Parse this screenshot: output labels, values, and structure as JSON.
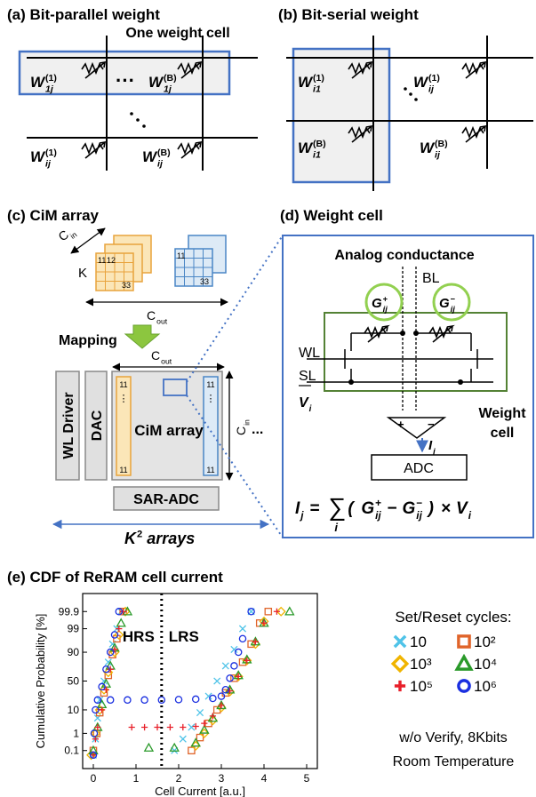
{
  "panel_a": {
    "title": "(a) Bit-parallel weight",
    "cell_label": "One weight cell",
    "ellipsis": "···",
    "weights": [
      {
        "base": "W",
        "sup": "(1)",
        "sub": "1j"
      },
      {
        "base": "W",
        "sup": "(B)",
        "sub": "1j"
      },
      {
        "base": "W",
        "sup": "(1)",
        "sub": "ij"
      },
      {
        "base": "W",
        "sup": "(B)",
        "sub": "ij"
      }
    ]
  },
  "panel_b": {
    "title": "(b) Bit-serial weight",
    "weights": [
      {
        "base": "W",
        "sup": "(1)",
        "sub": "i1"
      },
      {
        "base": "W",
        "sup": "(1)",
        "sub": "ij"
      },
      {
        "base": "W",
        "sup": "(B)",
        "sub": "i1"
      },
      {
        "base": "W",
        "sup": "(B)",
        "sub": "ij"
      }
    ]
  },
  "panel_c": {
    "title": "(c) CiM array",
    "c_in": {
      "base": "C",
      "sub": "in"
    },
    "k": "K",
    "cube_indices": [
      "11",
      "12",
      "33"
    ],
    "blue_indices": [
      "11",
      "33"
    ],
    "c_out": {
      "base": "C",
      "sub": "out"
    },
    "mapping": "Mapping",
    "c_out_array": {
      "base": "C",
      "sub": "out"
    },
    "wl_driver": "WL Driver",
    "dac": "DAC",
    "array": "CiM array",
    "orange_col": [
      "11",
      "⋮",
      "11"
    ],
    "blue_col": [
      "11",
      "⋮",
      "11"
    ],
    "c_in_array": {
      "base": "C",
      "sub": "in"
    },
    "more": "...",
    "sar_adc": "SAR-ADC",
    "arrays": {
      "base": "K",
      "sup": "2",
      "tail": " arrays"
    }
  },
  "panel_d": {
    "title": "(d) Weight cell",
    "analog": "Analog conductance",
    "bl": "BL",
    "wl": "WL",
    "sl": "SL",
    "v": {
      "base": "V",
      "sub": "i"
    },
    "g_plus": {
      "base": "G",
      "sup": "+",
      "sub": "ij"
    },
    "g_minus": {
      "base": "G",
      "sup": "−",
      "sub": "ij"
    },
    "plus": "+",
    "minus": "−",
    "current": {
      "base": "I",
      "sub": "j"
    },
    "adc": "ADC",
    "weight_cell": [
      "Weight",
      "cell"
    ],
    "formula": [
      {
        "base": "I",
        "sub": "j"
      },
      {
        "base": "="
      },
      {
        "base": "∑",
        "sub": "i"
      },
      {
        "base": "("
      },
      {
        "base": "G",
        "sup": "+",
        "sub": "ij"
      },
      {
        "base": "−"
      },
      {
        "base": "G",
        "sup": "−",
        "sub": "ij"
      },
      {
        "base": ")"
      },
      {
        "base": "×"
      },
      {
        "base": "V",
        "sub": "i"
      }
    ]
  },
  "chart_data": {
    "type": "scatter",
    "title": "(e) CDF of ReRAM cell current",
    "x_label": "Cell Current [a.u.]",
    "y_label": "Cumulative Probability [%]",
    "y_scale": "probit",
    "xlim": [
      -0.25,
      5.25
    ],
    "xticks": [
      0,
      1,
      2,
      3,
      4,
      5
    ],
    "ylim": [
      0.005,
      99.995
    ],
    "yticks": [
      0.1,
      1,
      10,
      50,
      90,
      99,
      99.9
    ],
    "divider_x": 1.6,
    "annotations": [
      "HRS",
      "LRS"
    ],
    "legend_title": "Set/Reset cycles:",
    "notes": [
      "w/o Verify, 8Kbits",
      "Room Temperature"
    ],
    "series": [
      {
        "name": "10",
        "color": "#4fc3e8",
        "marker": "x",
        "x": [
          0,
          0.05,
          0.1,
          0.15,
          0.25,
          0.35,
          0.45,
          0.55,
          0.65,
          1.9,
          2.1,
          2.3,
          2.5,
          2.7,
          2.9,
          3.1,
          3.3,
          3.5,
          3.7
        ],
        "values": [
          0.05,
          0.5,
          5,
          20,
          50,
          80,
          95,
          99,
          99.9,
          0.1,
          0.5,
          2,
          8,
          25,
          50,
          75,
          92,
          99,
          99.9
        ]
      },
      {
        "name": "10²",
        "color": "#e0642a",
        "marker": "square",
        "x": [
          0,
          0.08,
          0.15,
          0.25,
          0.35,
          0.45,
          0.55,
          0.7,
          2.3,
          2.5,
          2.7,
          2.9,
          3.1,
          3.3,
          3.5,
          3.7,
          3.9,
          4.1
        ],
        "values": [
          0.1,
          1,
          8,
          30,
          60,
          88,
          97,
          99.9,
          0.1,
          0.6,
          3,
          10,
          30,
          55,
          80,
          95,
          99.5,
          99.9
        ]
      },
      {
        "name": "10³",
        "color": "#f0b400",
        "marker": "diamond",
        "x": [
          -0.05,
          0.05,
          0.15,
          0.25,
          0.35,
          0.5,
          0.6,
          0.75,
          2.4,
          2.6,
          2.8,
          3.0,
          3.2,
          3.4,
          3.6,
          3.8,
          4.0,
          4.4
        ],
        "values": [
          0.05,
          1,
          10,
          35,
          65,
          90,
          98,
          99.9,
          0.2,
          1,
          4,
          12,
          32,
          58,
          82,
          95,
          99.6,
          99.9
        ]
      },
      {
        "name": "10⁴",
        "color": "#2a9a2a",
        "marker": "triangle",
        "x": [
          0,
          0.1,
          0.2,
          0.3,
          0.4,
          0.5,
          0.65,
          0.8,
          1.3,
          1.9,
          2.4,
          2.6,
          2.8,
          3.0,
          3.2,
          3.4,
          3.6,
          3.8,
          4.0,
          4.6
        ],
        "values": [
          0.1,
          2,
          15,
          45,
          75,
          93,
          99.5,
          99.9,
          0.15,
          0.15,
          0.3,
          1.5,
          5,
          14,
          35,
          60,
          83,
          96,
          99.5,
          99.9
        ]
      },
      {
        "name": "10⁵",
        "color": "#e8202a",
        "marker": "plus",
        "x": [
          0,
          0.05,
          0.1,
          0.2,
          0.3,
          0.4,
          0.5,
          0.6,
          0.7,
          0.9,
          1.2,
          1.5,
          1.8,
          2.1,
          2.4,
          2.6,
          2.8,
          3.0,
          3.2,
          3.4,
          3.6,
          3.8,
          4.0,
          4.3
        ],
        "values": [
          0.05,
          0.5,
          2,
          10,
          35,
          70,
          92,
          99,
          99.9,
          2,
          2,
          2,
          2,
          2,
          2.2,
          3,
          6,
          14,
          33,
          58,
          82,
          96,
          99.5,
          99.9
        ]
      },
      {
        "name": "10⁶",
        "color": "#1a2fe0",
        "marker": "circle",
        "x": [
          0,
          0.02,
          0.05,
          0.1,
          0.2,
          0.3,
          0.4,
          0.5,
          0.6,
          0.4,
          0.8,
          1.2,
          1.6,
          2.0,
          2.4,
          2.8,
          3.0,
          3.1,
          3.2,
          3.3,
          3.4,
          3.5,
          3.7
        ],
        "values": [
          0.05,
          1,
          10,
          20,
          40,
          70,
          90,
          98,
          99.9,
          20,
          20,
          20,
          20,
          20.5,
          21,
          22,
          25,
          35,
          55,
          75,
          90,
          97,
          99.9
        ]
      }
    ]
  }
}
